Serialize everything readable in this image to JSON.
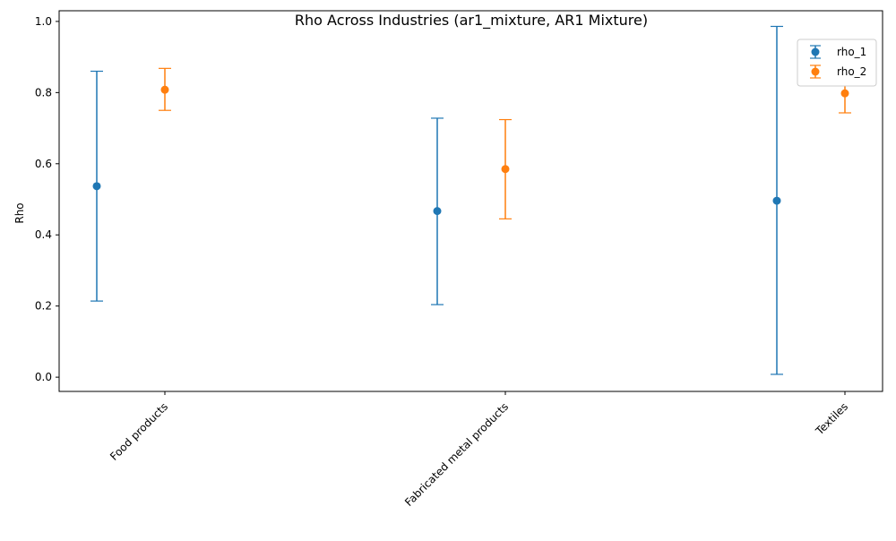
{
  "chart_data": {
    "type": "scatter",
    "title": "Rho Across Industries (ar1_mixture, AR1 Mixture)",
    "xlabel": "",
    "ylabel": "Rho",
    "categories": [
      "Food products",
      "Fabricated metal products",
      "Textiles"
    ],
    "ylim": [
      -0.04,
      1.03
    ],
    "yticks": [
      0.0,
      0.2,
      0.4,
      0.6,
      0.8,
      1.0
    ],
    "ytick_labels": [
      "0.0",
      "0.2",
      "0.4",
      "0.6",
      "0.8",
      "1.0"
    ],
    "grid": false,
    "legend_position": "top-right",
    "series": [
      {
        "name": "rho_1",
        "color": "#1f77b4",
        "values": [
          0.537,
          0.467,
          0.496
        ],
        "lower": [
          0.214,
          0.204,
          0.008
        ],
        "upper": [
          0.86,
          0.728,
          0.986
        ]
      },
      {
        "name": "rho_2",
        "color": "#ff7f0e",
        "values": [
          0.808,
          0.585,
          0.798
        ],
        "lower": [
          0.75,
          0.445,
          0.743
        ],
        "upper": [
          0.868,
          0.724,
          0.855
        ]
      }
    ]
  }
}
